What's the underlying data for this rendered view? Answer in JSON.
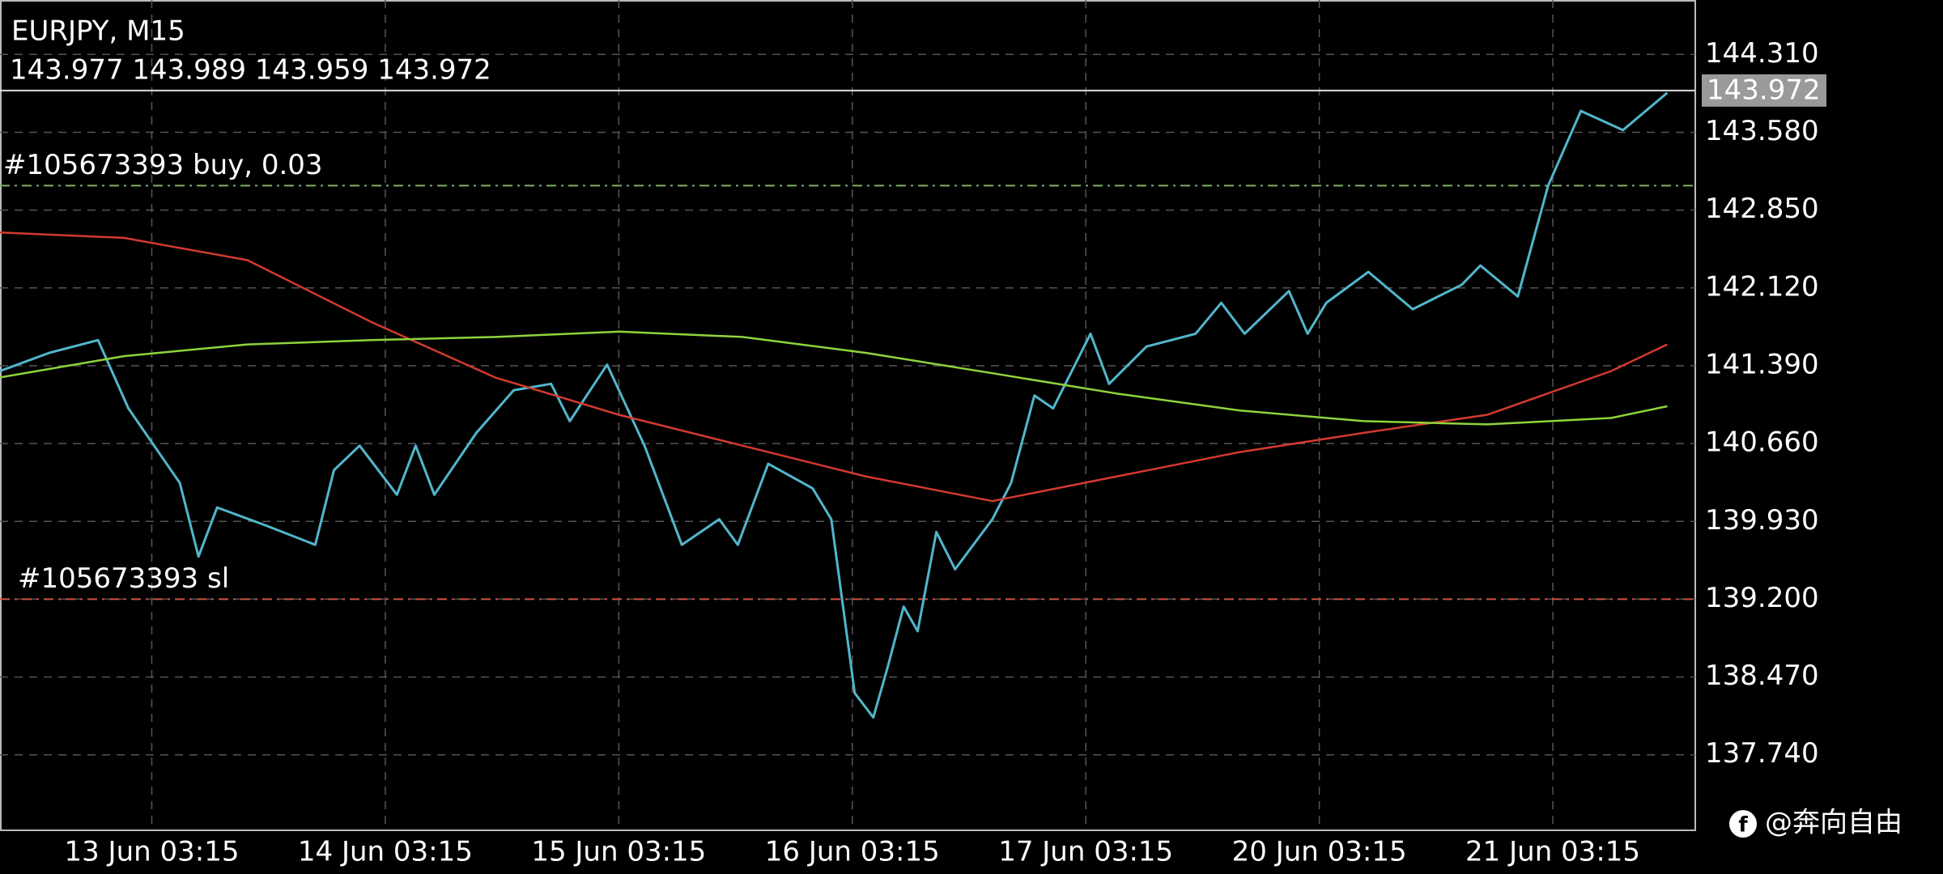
{
  "chart_data": {
    "type": "line",
    "title": "EURJPY, M15",
    "subtitle": "143.977 143.989 143.959 143.972",
    "watermark": "@奔向自由",
    "xlim": [
      0.35,
      7.61
    ],
    "xticks": [
      {
        "value": 1,
        "label": "13 Jun 03:15"
      },
      {
        "value": 2,
        "label": "14 Jun 03:15"
      },
      {
        "value": 3,
        "label": "15 Jun 03:15"
      },
      {
        "value": 4,
        "label": "16 Jun 03:15"
      },
      {
        "value": 5,
        "label": "17 Jun 03:15"
      },
      {
        "value": 6,
        "label": "20 Jun 03:15"
      },
      {
        "value": 7,
        "label": "21 Jun 03:15"
      }
    ],
    "ylim": [
      137.032,
      144.821
    ],
    "yticks": [
      {
        "value": 144.31,
        "label": "144.310"
      },
      {
        "value": 143.58,
        "label": "143.580"
      },
      {
        "value": 142.85,
        "label": "142.850"
      },
      {
        "value": 142.12,
        "label": "142.120"
      },
      {
        "value": 141.39,
        "label": "141.390"
      },
      {
        "value": 140.66,
        "label": "140.660"
      },
      {
        "value": 139.93,
        "label": "139.930"
      },
      {
        "value": 139.2,
        "label": "139.200"
      },
      {
        "value": 138.47,
        "label": "138.470"
      },
      {
        "value": 137.74,
        "label": "137.740"
      }
    ],
    "grid": true,
    "last_price": 143.972,
    "price_lines": [
      {
        "label": "#105673393 buy, 0.03",
        "value": 143.08,
        "color": "#7fae6a"
      },
      {
        "label": "#105673393 sl",
        "value": 139.2,
        "color": "#d0543f"
      }
    ],
    "series": [
      {
        "color": "#52b6cc",
        "x": [
          0.35,
          0.56,
          0.77,
          0.9,
          1.12,
          1.2,
          1.28,
          1.49,
          1.7,
          1.78,
          1.89,
          2.05,
          2.13,
          2.21,
          2.39,
          2.55,
          2.71,
          2.79,
          2.95,
          3.11,
          3.27,
          3.43,
          3.51,
          3.64,
          3.83,
          3.91,
          4.01,
          4.09,
          4.15,
          4.22,
          4.28,
          4.36,
          4.44,
          4.6,
          4.68,
          4.78,
          4.86,
          5.02,
          5.1,
          5.26,
          5.47,
          5.58,
          5.68,
          5.87,
          5.95,
          6.03,
          6.21,
          6.4,
          6.61,
          6.69,
          6.85,
          6.98,
          7.12,
          7.3,
          7.49
        ],
        "values": [
          141.34,
          141.51,
          141.63,
          140.99,
          140.29,
          139.6,
          140.06,
          139.89,
          139.71,
          140.41,
          140.64,
          140.18,
          140.64,
          140.18,
          140.76,
          141.16,
          141.22,
          140.87,
          141.4,
          140.64,
          139.71,
          139.95,
          139.71,
          140.47,
          140.24,
          139.95,
          138.32,
          138.09,
          138.55,
          139.13,
          138.9,
          139.83,
          139.48,
          139.95,
          140.29,
          141.11,
          140.99,
          141.69,
          141.22,
          141.57,
          141.69,
          141.98,
          141.69,
          142.09,
          141.69,
          141.98,
          142.27,
          141.92,
          142.15,
          142.33,
          142.04,
          143.08,
          143.78,
          143.6,
          143.95
        ]
      },
      {
        "color": "#d23a30",
        "x": [
          0.35,
          0.88,
          1.41,
          1.94,
          2.47,
          3.0,
          3.53,
          4.06,
          4.6,
          5.13,
          5.66,
          6.19,
          6.72,
          7.25,
          7.49
        ],
        "values": [
          142.64,
          142.59,
          142.38,
          141.8,
          141.28,
          140.93,
          140.64,
          140.35,
          140.12,
          140.35,
          140.58,
          140.76,
          140.93,
          141.34,
          141.59
        ]
      },
      {
        "color": "#8fd43c",
        "x": [
          0.35,
          0.88,
          1.41,
          1.94,
          2.47,
          3.0,
          3.53,
          4.06,
          4.6,
          5.13,
          5.66,
          6.19,
          6.72,
          7.25,
          7.49
        ],
        "values": [
          141.28,
          141.48,
          141.59,
          141.63,
          141.66,
          141.71,
          141.66,
          141.51,
          141.32,
          141.13,
          140.97,
          140.87,
          140.84,
          140.9,
          141.01
        ]
      }
    ]
  }
}
